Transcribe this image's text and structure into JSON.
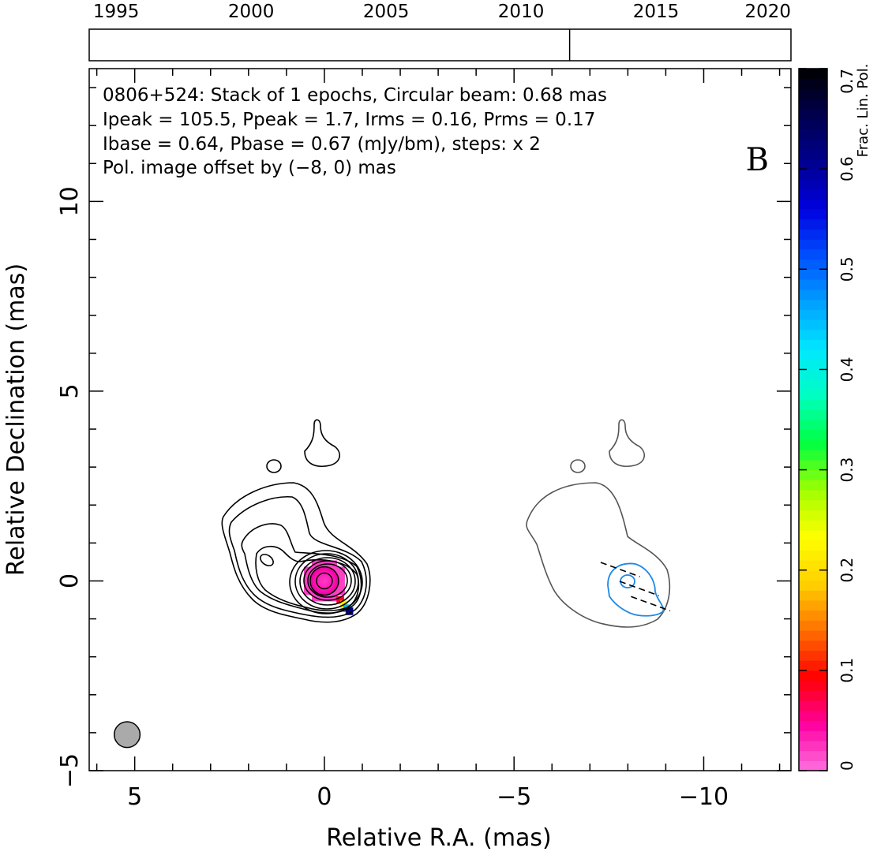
{
  "chart_data": {
    "type": "contour",
    "panel_letter": "B",
    "annotations": [
      "0806+524: Stack of 1 epochs, Circular beam: 0.68 mas",
      "Ipeak = 105.5, Ppeak = 1.7, Irms = 0.16, Prms = 0.17",
      "Ibase = 0.64, Pbase = 0.67 (mJy/bm), steps: x 2"
    ],
    "pol_offset_note": "Pol. image offset by (−8, 0) mas",
    "pol_offset_color": "#1e88e5",
    "xlabel": "Relative R.A. (mas)",
    "ylabel": "Relative Declination (mas)",
    "xlim": [
      6.2,
      -12.3
    ],
    "ylim": [
      -5.0,
      13.5
    ],
    "x_ticks": [
      5,
      0,
      -5,
      -10
    ],
    "x_tick_labels": [
      "5",
      "0",
      "−5",
      "−10"
    ],
    "y_ticks": [
      -5,
      0,
      5,
      10
    ],
    "y_tick_labels": [
      "−5",
      "0",
      "5",
      "10"
    ],
    "timeline": {
      "xlim": [
        1994.0,
        2020.0
      ],
      "ticks": [
        1995,
        2000,
        2005,
        2010,
        2015,
        2020
      ],
      "tick_labels": [
        "1995",
        "2000",
        "2005",
        "2010",
        "2015",
        "2020"
      ],
      "epochs": [
        2011.8
      ]
    },
    "colorbar": {
      "label": "Frac. Lin. Pol.",
      "range": [
        0,
        0.7
      ],
      "ticks": [
        0,
        0.1,
        0.2,
        0.3,
        0.4,
        0.5,
        0.6,
        0.7
      ],
      "tick_labels": [
        "0",
        "0.1",
        "0.2",
        "0.3",
        "0.4",
        "0.5",
        "0.6",
        "0.7"
      ],
      "stops": [
        "#ff70e0",
        "#ff00a0",
        "#ff0000",
        "#ff7000",
        "#ffd000",
        "#ffff00",
        "#a0ff00",
        "#00ff40",
        "#00ffc0",
        "#00e8ff",
        "#00a0ff",
        "#0050ff",
        "#0000e0",
        "#000090",
        "#000050",
        "#000000"
      ]
    },
    "beam": {
      "x": 5.2,
      "y": -4.05,
      "diameter_mas": 0.68,
      "color": "#aaaaaa"
    },
    "stokes_i_core": {
      "x": 0.0,
      "y": 0.0
    },
    "polarization_core": {
      "x": -7.95,
      "y": 0.0
    },
    "frac_pol_pixels": [
      {
        "x": 0.0,
        "y": 0.0,
        "value": 0.02
      },
      {
        "x": -0.42,
        "y": -0.5,
        "value": 0.08
      },
      {
        "x": -0.52,
        "y": -0.62,
        "value": 0.22
      },
      {
        "x": -0.6,
        "y": -0.72,
        "value": 0.45
      },
      {
        "x": -0.66,
        "y": -0.8,
        "value": 0.62
      }
    ],
    "evpa_vectors": [
      {
        "x": -7.8,
        "y": 0.3,
        "angle_deg": -20
      },
      {
        "x": -8.3,
        "y": -0.2,
        "angle_deg": -20
      },
      {
        "x": -8.6,
        "y": -0.6,
        "angle_deg": -20
      }
    ]
  }
}
